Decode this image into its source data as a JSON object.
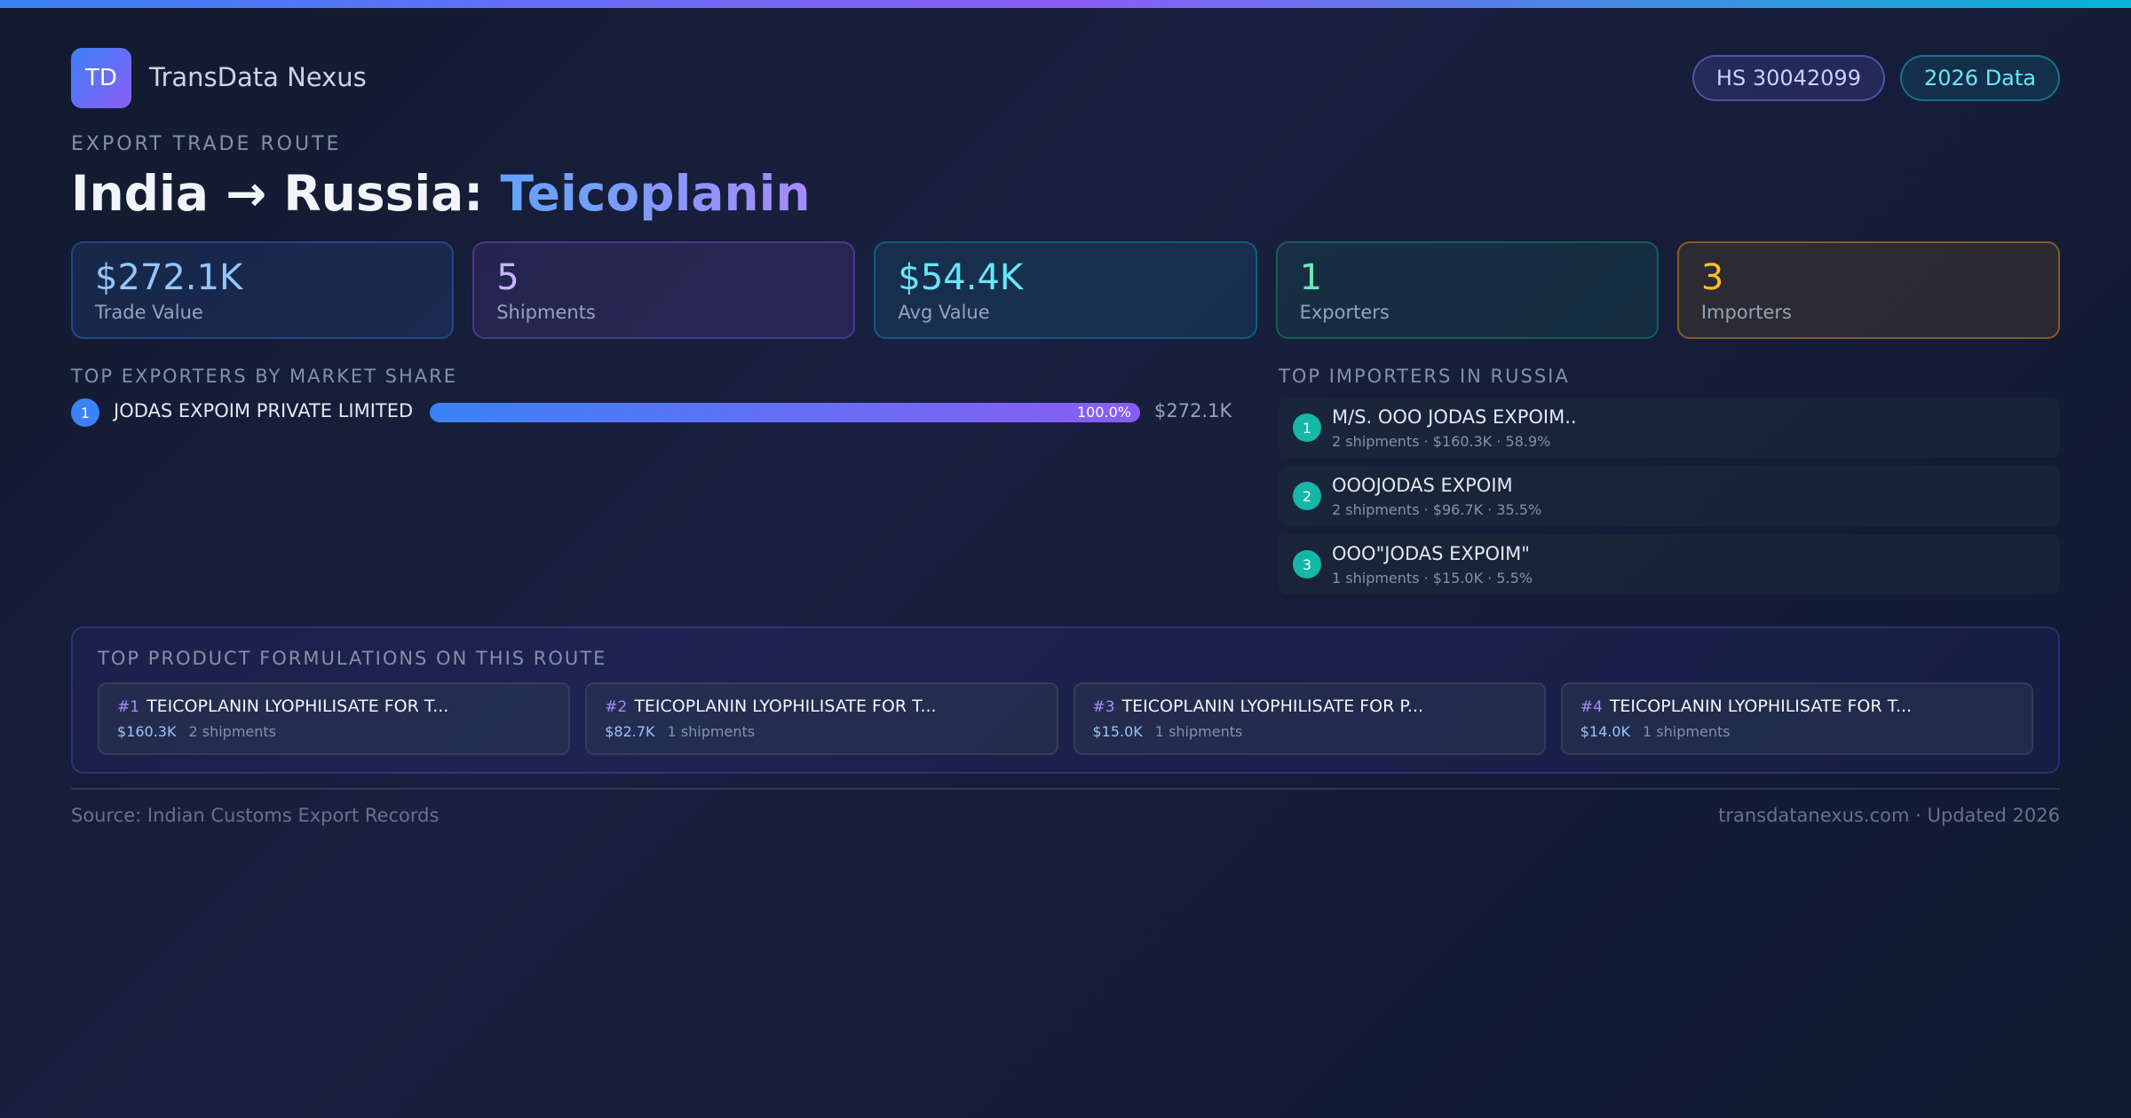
{
  "brand": {
    "logo_text": "TD",
    "name": "TransData Nexus"
  },
  "badges": {
    "hs": "HS 30042099",
    "year": "2026 Data"
  },
  "kicker": "EXPORT TRADE ROUTE",
  "title": {
    "route": "India → Russia: ",
    "product": "Teicoplanin"
  },
  "stats": [
    {
      "value": "$272.1K",
      "label": "Trade Value"
    },
    {
      "value": "5",
      "label": "Shipments"
    },
    {
      "value": "$54.4K",
      "label": "Avg Value"
    },
    {
      "value": "1",
      "label": "Exporters"
    },
    {
      "value": "3",
      "label": "Importers"
    }
  ],
  "exporters": {
    "heading": "TOP EXPORTERS BY MARKET SHARE",
    "items": [
      {
        "rank": "1",
        "name": "JODAS EXPOIM PRIVATE LIMITED",
        "share": 100.0,
        "share_label": "100.0%",
        "value": "$272.1K"
      }
    ]
  },
  "importers": {
    "heading": "TOP IMPORTERS IN RUSSIA",
    "items": [
      {
        "rank": "1",
        "name": "M/S. OOO JODAS EXPOIM..",
        "meta": "2 shipments · $160.3K · 58.9%"
      },
      {
        "rank": "2",
        "name": "OOOJODAS EXPOIM",
        "meta": "2 shipments · $96.7K · 35.5%"
      },
      {
        "rank": "3",
        "name": "OOO\"JODAS EXPOIM\"",
        "meta": "1 shipments · $15.0K · 5.5%"
      }
    ]
  },
  "products": {
    "heading": "TOP PRODUCT FORMULATIONS ON THIS ROUTE",
    "items": [
      {
        "rank": "#1",
        "name": "TEICOPLANIN LYOPHILISATE FOR T...",
        "value": "$160.3K",
        "count": "2 shipments"
      },
      {
        "rank": "#2",
        "name": "TEICOPLANIN LYOPHILISATE FOR T...",
        "value": "$82.7K",
        "count": "1 shipments"
      },
      {
        "rank": "#3",
        "name": "TEICOPLANIN LYOPHILISATE FOR P...",
        "value": "$15.0K",
        "count": "1 shipments"
      },
      {
        "rank": "#4",
        "name": "TEICOPLANIN LYOPHILISATE FOR T...",
        "value": "$14.0K",
        "count": "1 shipments"
      }
    ]
  },
  "footer": {
    "source": "Source: Indian Customs Export Records",
    "site": "transdatanexus.com · Updated 2026"
  },
  "colors": {
    "accent_blue": "#3b82f6",
    "accent_violet": "#8b5cf6",
    "accent_cyan": "#06b6d4",
    "teal_rank": "#14b8a6",
    "amber": "#fbbf24"
  }
}
